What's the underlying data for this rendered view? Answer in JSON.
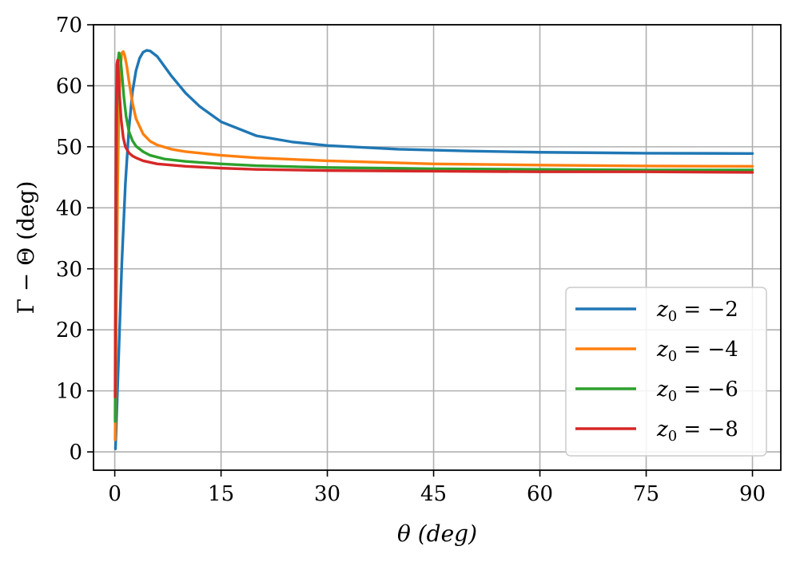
{
  "chart_data": {
    "type": "line",
    "title": "",
    "xlabel": "θ (deg)",
    "ylabel": "Γ − Θ (deg)",
    "xlim": [
      -3,
      94
    ],
    "ylim": [
      -3,
      70
    ],
    "xticks": [
      0,
      15,
      30,
      45,
      60,
      75,
      90
    ],
    "yticks": [
      0,
      10,
      20,
      30,
      40,
      50,
      60,
      70
    ],
    "xtick_labels": [
      "0",
      "15",
      "30",
      "45",
      "60",
      "75",
      "90"
    ],
    "ytick_labels": [
      "0",
      "10",
      "20",
      "30",
      "40",
      "50",
      "60",
      "70"
    ],
    "grid": true,
    "legend_position": "lower-right",
    "series": [
      {
        "name": "z0 = −2",
        "legend_base": "z",
        "legend_sub": "0",
        "legend_rest": " = −2",
        "color": "#1f77b4",
        "x": [
          0.1,
          0.5,
          1,
          1.5,
          2,
          2.5,
          3,
          3.5,
          4,
          4.5,
          5,
          6,
          7,
          8,
          10,
          12,
          15,
          20,
          25,
          30,
          40,
          50,
          60,
          75,
          90
        ],
        "y": [
          0.5,
          14,
          31,
          44,
          53,
          59,
          62.5,
          64.5,
          65.5,
          65.8,
          65.7,
          64.8,
          63.2,
          61.6,
          58.8,
          56.6,
          54.1,
          51.8,
          50.8,
          50.2,
          49.6,
          49.3,
          49.1,
          48.95,
          48.9
        ]
      },
      {
        "name": "z0 = −4",
        "legend_base": "z",
        "legend_sub": "0",
        "legend_rest": " = −4",
        "color": "#ff7f0e",
        "x": [
          0.05,
          0.2,
          0.4,
          0.6,
          0.8,
          1.0,
          1.2,
          1.4,
          1.7,
          2,
          2.5,
          3,
          4,
          5,
          6,
          8,
          10,
          15,
          20,
          30,
          45,
          60,
          75,
          90
        ],
        "y": [
          2,
          20,
          43,
          57,
          63,
          65.4,
          65.6,
          65,
          63.2,
          60.8,
          57.2,
          54.6,
          52.1,
          50.9,
          50.3,
          49.6,
          49.2,
          48.6,
          48.2,
          47.7,
          47.2,
          47.0,
          46.85,
          46.8
        ]
      },
      {
        "name": "z0 = −6",
        "legend_base": "z",
        "legend_sub": "0",
        "legend_rest": " = −6",
        "color": "#2ca02c",
        "x": [
          0.05,
          0.15,
          0.3,
          0.45,
          0.6,
          0.8,
          1.0,
          1.3,
          1.6,
          2,
          2.5,
          3,
          4,
          5,
          7,
          10,
          15,
          20,
          30,
          45,
          60,
          75,
          90
        ],
        "y": [
          5,
          30,
          56,
          64,
          65.4,
          64.6,
          62,
          58,
          55,
          52.5,
          51,
          50.1,
          49.2,
          48.6,
          48.0,
          47.6,
          47.2,
          46.9,
          46.6,
          46.4,
          46.3,
          46.2,
          46.2
        ]
      },
      {
        "name": "z0 = −8",
        "legend_base": "z",
        "legend_sub": "0",
        "legend_rest": " = −8",
        "color": "#d62728",
        "x": [
          0.05,
          0.12,
          0.2,
          0.3,
          0.4,
          0.5,
          0.7,
          0.9,
          1.2,
          1.5,
          2,
          2.5,
          3,
          4,
          6,
          10,
          15,
          20,
          30,
          45,
          60,
          75,
          90
        ],
        "y": [
          9,
          35,
          55,
          63.5,
          64.2,
          62.5,
          58,
          54.5,
          51.5,
          50.0,
          49.0,
          48.5,
          48.2,
          47.7,
          47.2,
          46.8,
          46.5,
          46.3,
          46.1,
          46.0,
          45.9,
          45.9,
          45.8
        ]
      }
    ]
  }
}
